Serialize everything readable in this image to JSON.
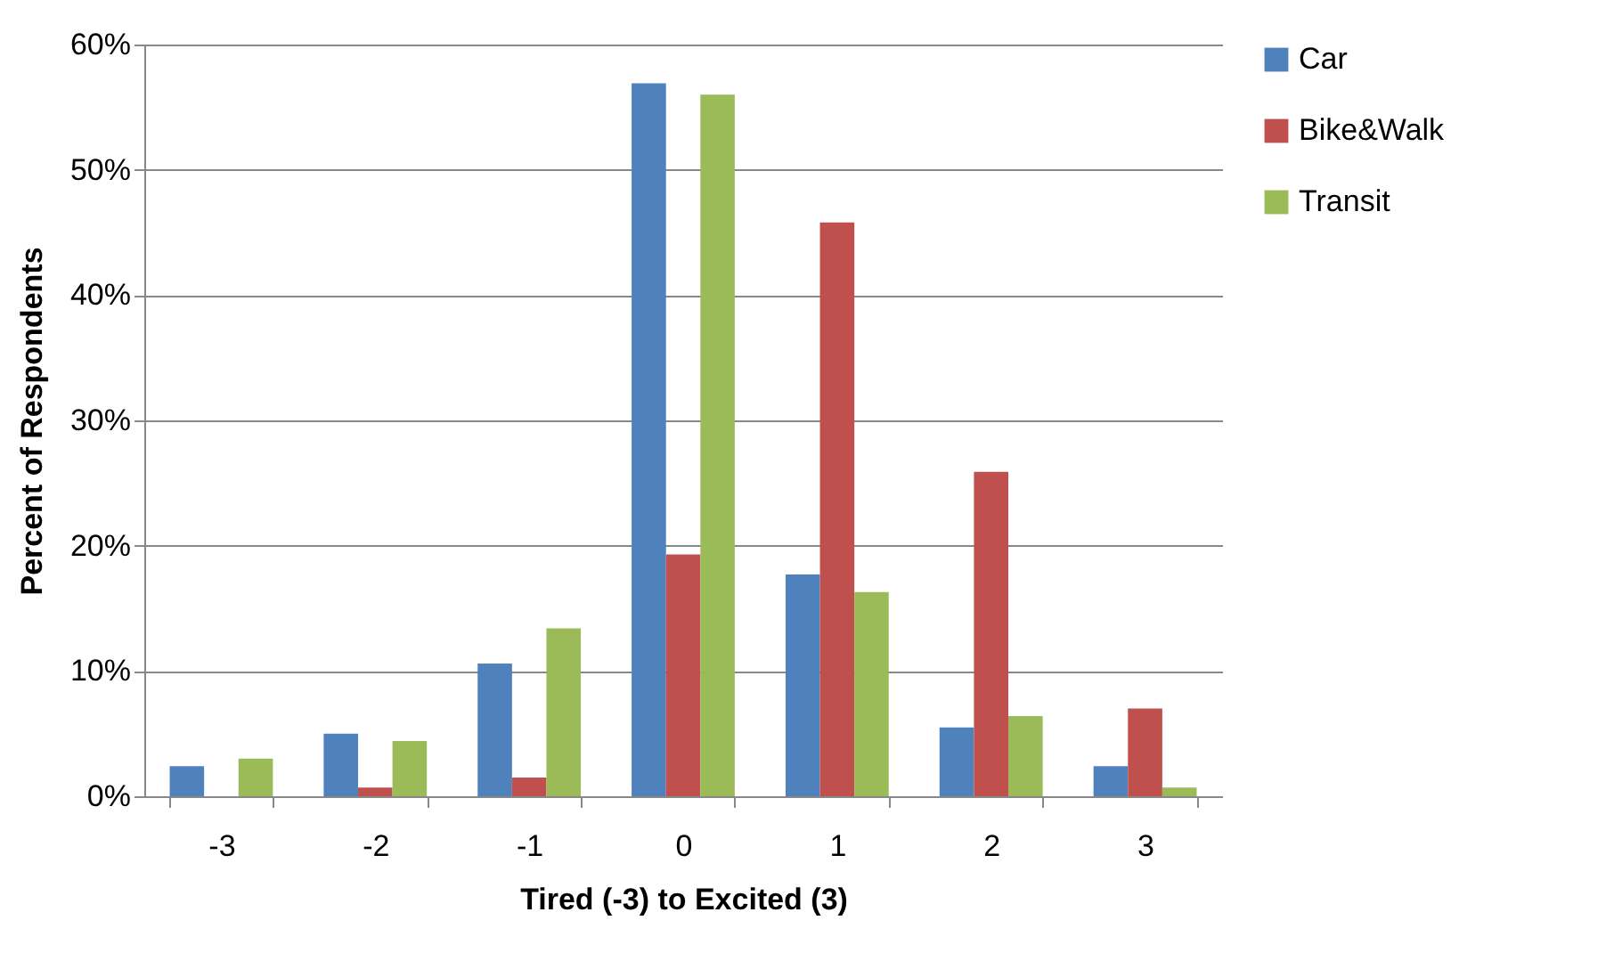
{
  "chart_data": {
    "type": "bar",
    "xlabel": "Tired (-3) to Excited (3)",
    "ylabel": "Percent of Respondents",
    "categories": [
      "-3",
      "-2",
      "-1",
      "0",
      "1",
      "2",
      "3"
    ],
    "series": [
      {
        "name": "Car",
        "color": "#4f81bd",
        "values": [
          2.4,
          5.0,
          10.6,
          56.9,
          17.7,
          5.5,
          2.4
        ]
      },
      {
        "name": "Bike&Walk",
        "color": "#c0504d",
        "values": [
          0,
          0.7,
          1.5,
          19.3,
          45.8,
          25.9,
          7.0
        ]
      },
      {
        "name": "Transit",
        "color": "#9bbb59",
        "values": [
          3.0,
          4.4,
          13.4,
          56.0,
          16.3,
          6.4,
          0.7
        ]
      }
    ],
    "ylim": [
      0,
      60
    ],
    "yticks": [
      {
        "value": 0,
        "label": "0%"
      },
      {
        "value": 10,
        "label": "10%"
      },
      {
        "value": 20,
        "label": "20%"
      },
      {
        "value": 30,
        "label": "30%"
      },
      {
        "value": 40,
        "label": "40%"
      },
      {
        "value": 50,
        "label": "50%"
      },
      {
        "value": 60,
        "label": "60%"
      }
    ],
    "grid": "y",
    "legend": "right"
  }
}
